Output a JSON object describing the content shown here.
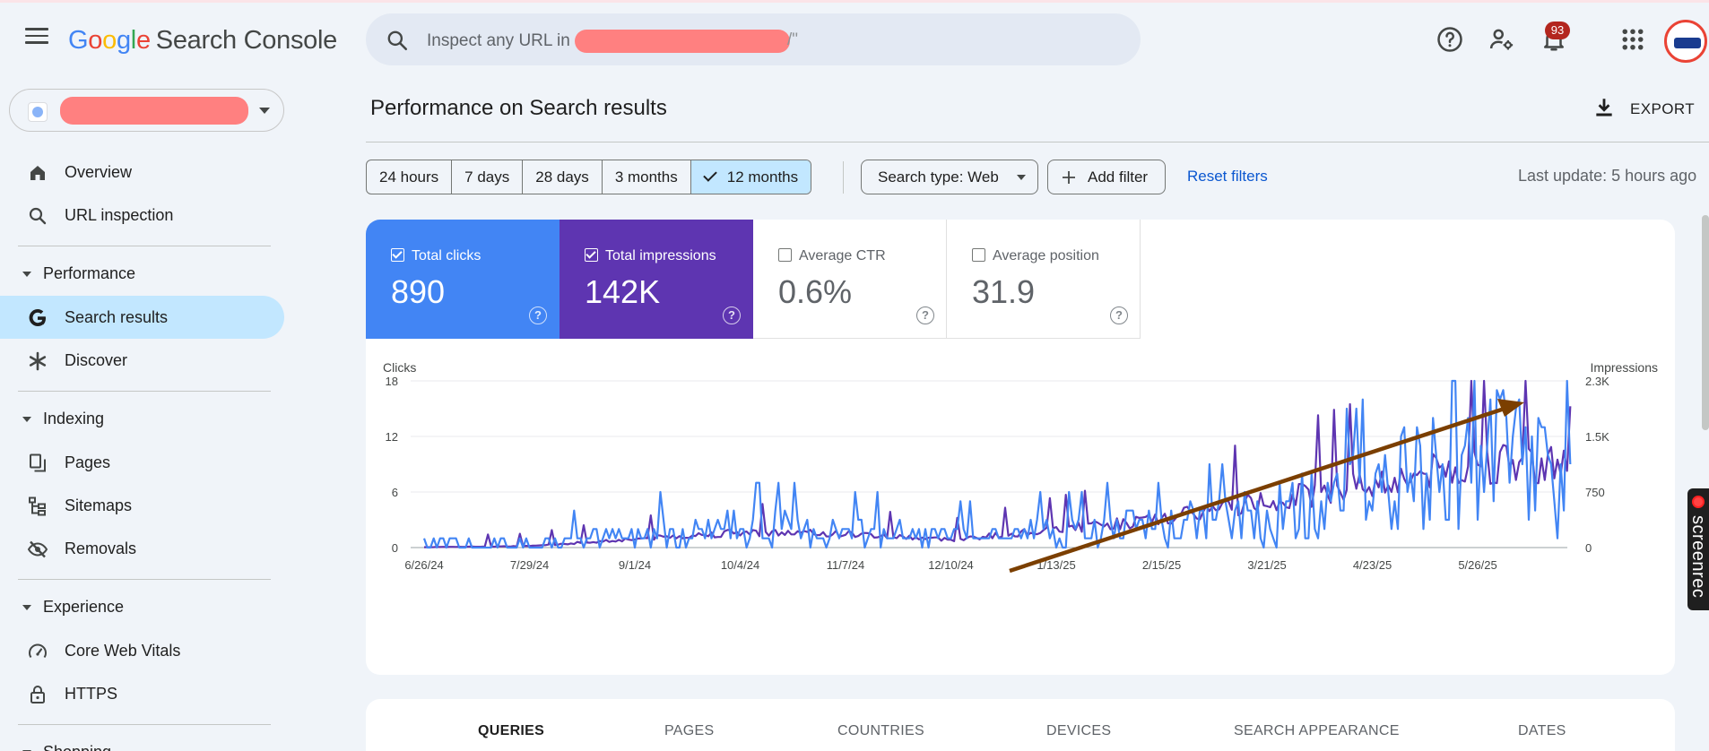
{
  "header": {
    "logo_letters": [
      "G",
      "o",
      "o",
      "g",
      "l",
      "e"
    ],
    "logo_product": "Search Console",
    "search_placeholder": "Inspect any URL in",
    "search_tail": "/\"",
    "notification_count": "93",
    "icons": [
      "menu-icon",
      "search-icon",
      "help-icon",
      "manage-users-icon",
      "notifications-icon",
      "apps-icon",
      "avatar"
    ]
  },
  "sidebar": {
    "items": [
      {
        "label": "Overview",
        "icon": "home-icon"
      },
      {
        "label": "URL inspection",
        "icon": "search-icon"
      },
      {
        "label": "Performance",
        "type": "section"
      },
      {
        "label": "Search results",
        "icon": "google-g-icon",
        "active": true
      },
      {
        "label": "Discover",
        "icon": "asterisk-icon"
      },
      {
        "label": "Indexing",
        "type": "section"
      },
      {
        "label": "Pages",
        "icon": "pages-icon"
      },
      {
        "label": "Sitemaps",
        "icon": "sitemap-icon"
      },
      {
        "label": "Removals",
        "icon": "eye-off-icon"
      },
      {
        "label": "Experience",
        "type": "section"
      },
      {
        "label": "Core Web Vitals",
        "icon": "gauge-icon"
      },
      {
        "label": "HTTPS",
        "icon": "lock-icon"
      },
      {
        "label": "Shopping",
        "type": "section"
      }
    ]
  },
  "main": {
    "title": "Performance on Search results",
    "export_label": "EXPORT",
    "date_ranges": [
      "24 hours",
      "7 days",
      "28 days",
      "3 months",
      "12 months"
    ],
    "selected_range": "12 months",
    "search_type_label": "Search type: Web",
    "add_filter_label": "Add filter",
    "reset_filters_label": "Reset filters",
    "last_update": "Last update: 5 hours ago"
  },
  "metrics": [
    {
      "label": "Total clicks",
      "value": "890",
      "checked": true,
      "color": "#4285f4"
    },
    {
      "label": "Total impressions",
      "value": "142K",
      "checked": true,
      "color": "#5e35b1"
    },
    {
      "label": "Average CTR",
      "value": "0.6%",
      "checked": false
    },
    {
      "label": "Average position",
      "value": "31.9",
      "checked": false
    }
  ],
  "tabs": [
    "QUERIES",
    "PAGES",
    "COUNTRIES",
    "DEVICES",
    "SEARCH APPEARANCE",
    "DATES"
  ],
  "active_tab": "QUERIES",
  "overlay": {
    "recorder_text": "screenrec",
    "arrow_color": "#7b3f00"
  },
  "chart_data": {
    "type": "line",
    "ylabel_left": "Clicks",
    "ylabel_right": "Impressions",
    "y_left_ticks": [
      "0",
      "6",
      "12",
      "18"
    ],
    "y_right_ticks": [
      "0",
      "750",
      "1.5K",
      "2.3K"
    ],
    "ylim_left": [
      0,
      18
    ],
    "ylim_right": [
      0,
      2300
    ],
    "x_tick_labels": [
      "6/26/24",
      "7/29/24",
      "9/1/24",
      "10/4/24",
      "11/7/24",
      "12/10/24",
      "1/13/25",
      "2/15/25",
      "3/21/25",
      "4/23/25",
      "5/26/25"
    ],
    "grid": true,
    "series": [
      {
        "name": "Clicks",
        "color": "#4285f4",
        "axis": "left",
        "monthly_x": [
          "6/26/24",
          "7/29/24",
          "9/1/24",
          "10/4/24",
          "11/7/24",
          "12/10/24",
          "1/13/25",
          "2/15/25",
          "3/21/25",
          "4/23/25",
          "5/26/25"
        ],
        "monthly_values": [
          0.4,
          0.4,
          1.3,
          2.1,
          1.7,
          1.0,
          1.6,
          2.1,
          3.3,
          5.5,
          8.5
        ],
        "peak_value": 17
      },
      {
        "name": "Impressions",
        "color": "#5e35b1",
        "axis": "right",
        "monthly_x": [
          "6/26/24",
          "7/29/24",
          "9/1/24",
          "10/4/24",
          "11/7/24",
          "12/10/24",
          "1/13/25",
          "2/15/25",
          "3/21/25",
          "4/23/25",
          "5/26/25"
        ],
        "monthly_values": [
          5,
          20,
          120,
          210,
          190,
          110,
          250,
          390,
          650,
          880,
          1150
        ],
        "end_value": 1950
      }
    ]
  }
}
